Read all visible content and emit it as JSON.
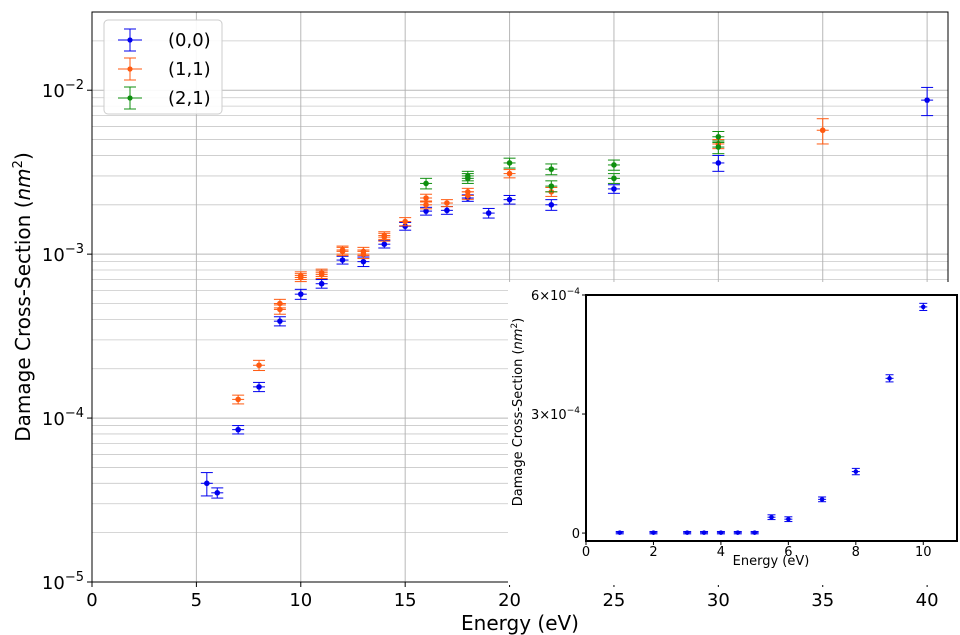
{
  "chart_data": [
    {
      "type": "scatter",
      "title": "",
      "xlabel": "Energy (eV)",
      "ylabel": "Damage Cross-Section (nm²)",
      "yscale": "log",
      "xlim": [
        0,
        41
      ],
      "ylim": [
        1e-05,
        0.03
      ],
      "x_ticks": [
        0,
        5,
        10,
        15,
        20,
        25,
        30,
        35,
        40
      ],
      "y_ticks": [
        {
          "value": 1e-05,
          "base": "10",
          "exp": "−5"
        },
        {
          "value": 0.0001,
          "base": "10",
          "exp": "−4"
        },
        {
          "value": 0.001,
          "base": "10",
          "exp": "−3"
        },
        {
          "value": 0.01,
          "base": "10",
          "exp": "−2"
        }
      ],
      "grid": true,
      "legend_position": "top-left",
      "series": [
        {
          "name": "(0,0)",
          "color": "#0000ee",
          "points": [
            {
              "x": 5.5,
              "y": 4e-05,
              "err": 6.5e-06
            },
            {
              "x": 6.0,
              "y": 3.5e-05,
              "err": 2.5e-06
            },
            {
              "x": 7.0,
              "y": 8.5e-05,
              "err": 5e-06
            },
            {
              "x": 8.0,
              "y": 0.000155,
              "err": 1e-05
            },
            {
              "x": 9.0,
              "y": 0.00039,
              "err": 2.5e-05
            },
            {
              "x": 10.0,
              "y": 0.00057,
              "err": 4e-05
            },
            {
              "x": 11.0,
              "y": 0.00066,
              "err": 4e-05
            },
            {
              "x": 12.0,
              "y": 0.00092,
              "err": 5e-05
            },
            {
              "x": 13.0,
              "y": 0.0009,
              "err": 6e-05
            },
            {
              "x": 14.0,
              "y": 0.00115,
              "err": 6e-05
            },
            {
              "x": 15.0,
              "y": 0.00148,
              "err": 8e-05
            },
            {
              "x": 16.0,
              "y": 0.00183,
              "err": 0.0001
            },
            {
              "x": 17.0,
              "y": 0.00185,
              "err": 0.0001
            },
            {
              "x": 18.0,
              "y": 0.0022,
              "err": 0.0001
            },
            {
              "x": 19.0,
              "y": 0.00178,
              "err": 0.00012
            },
            {
              "x": 20.0,
              "y": 0.00215,
              "err": 0.00013
            },
            {
              "x": 22.0,
              "y": 0.002,
              "err": 0.00015
            },
            {
              "x": 25.0,
              "y": 0.0025,
              "err": 0.00015
            },
            {
              "x": 30.0,
              "y": 0.0036,
              "err": 0.0004
            },
            {
              "x": 40.0,
              "y": 0.0087,
              "err": 0.0017
            }
          ]
        },
        {
          "name": "(1,1)",
          "color": "#ff5a10",
          "points": [
            {
              "x": 7.0,
              "y": 0.00013,
              "err": 8e-06
            },
            {
              "x": 8.0,
              "y": 0.00021,
              "err": 1.5e-05
            },
            {
              "x": 9.0,
              "y": 0.00046,
              "err": 3e-05
            },
            {
              "x": 9.0,
              "y": 0.0005,
              "err": 3e-05
            },
            {
              "x": 10.0,
              "y": 0.00072,
              "err": 4e-05
            },
            {
              "x": 10.0,
              "y": 0.00074,
              "err": 4e-05
            },
            {
              "x": 11.0,
              "y": 0.00075,
              "err": 4e-05
            },
            {
              "x": 11.0,
              "y": 0.00077,
              "err": 4e-05
            },
            {
              "x": 12.0,
              "y": 0.00104,
              "err": 6e-05
            },
            {
              "x": 12.0,
              "y": 0.00106,
              "err": 6e-05
            },
            {
              "x": 13.0,
              "y": 0.001,
              "err": 6e-05
            },
            {
              "x": 13.0,
              "y": 0.00104,
              "err": 6e-05
            },
            {
              "x": 14.0,
              "y": 0.0013,
              "err": 7e-05
            },
            {
              "x": 14.0,
              "y": 0.00127,
              "err": 7e-05
            },
            {
              "x": 15.0,
              "y": 0.00158,
              "err": 9e-05
            },
            {
              "x": 16.0,
              "y": 0.0022,
              "err": 0.00012
            },
            {
              "x": 16.0,
              "y": 0.002,
              "err": 0.00011
            },
            {
              "x": 17.0,
              "y": 0.00205,
              "err": 0.0001
            },
            {
              "x": 18.0,
              "y": 0.0024,
              "err": 0.00012
            },
            {
              "x": 18.0,
              "y": 0.00228,
              "err": 0.00012
            },
            {
              "x": 20.0,
              "y": 0.0031,
              "err": 0.00018
            },
            {
              "x": 22.0,
              "y": 0.0024,
              "err": 0.00015
            },
            {
              "x": 30.0,
              "y": 0.0047,
              "err": 0.0003
            },
            {
              "x": 35.0,
              "y": 0.0057,
              "err": 0.001
            }
          ]
        },
        {
          "name": "(2,1)",
          "color": "#0f8f0f",
          "points": [
            {
              "x": 16.0,
              "y": 0.0027,
              "err": 0.0002
            },
            {
              "x": 18.0,
              "y": 0.003,
              "err": 0.0002
            },
            {
              "x": 18.0,
              "y": 0.0029,
              "err": 0.0002
            },
            {
              "x": 20.0,
              "y": 0.0036,
              "err": 0.00025
            },
            {
              "x": 22.0,
              "y": 0.0033,
              "err": 0.00025
            },
            {
              "x": 22.0,
              "y": 0.0026,
              "err": 0.0002
            },
            {
              "x": 25.0,
              "y": 0.0035,
              "err": 0.00025
            },
            {
              "x": 25.0,
              "y": 0.0029,
              "err": 0.0002
            },
            {
              "x": 30.0,
              "y": 0.0052,
              "err": 0.0004
            },
            {
              "x": 30.0,
              "y": 0.0045,
              "err": 0.0004
            }
          ]
        }
      ]
    },
    {
      "type": "scatter",
      "title": "",
      "xlabel": "Energy (eV)",
      "ylabel": "Damage Cross-Section (nm²)",
      "yscale": "linear",
      "xlim": [
        0,
        11
      ],
      "ylim": [
        -2e-05,
        0.0006
      ],
      "x_ticks": [
        0,
        2,
        4,
        6,
        8,
        10
      ],
      "y_ticks": [
        {
          "value": 0,
          "label": "0"
        },
        {
          "value": 0.0003,
          "base": "3×10",
          "exp": "−4"
        },
        {
          "value": 0.0006,
          "base": "6×10",
          "exp": "−4"
        }
      ],
      "grid": false,
      "series": [
        {
          "name": "",
          "color": "#0000ee",
          "points": [
            {
              "x": 1.0,
              "y": 1e-06,
              "err": 3e-06
            },
            {
              "x": 2.0,
              "y": 1e-06,
              "err": 3e-06
            },
            {
              "x": 3.0,
              "y": 1e-06,
              "err": 3e-06
            },
            {
              "x": 3.5,
              "y": 1e-06,
              "err": 3e-06
            },
            {
              "x": 4.0,
              "y": 1e-06,
              "err": 3e-06
            },
            {
              "x": 4.5,
              "y": 1e-06,
              "err": 3e-06
            },
            {
              "x": 5.0,
              "y": 1e-06,
              "err": 3e-06
            },
            {
              "x": 5.5,
              "y": 4e-05,
              "err": 6e-06
            },
            {
              "x": 6.0,
              "y": 3.5e-05,
              "err": 6e-06
            },
            {
              "x": 7.0,
              "y": 8.5e-05,
              "err": 6e-06
            },
            {
              "x": 8.0,
              "y": 0.000155,
              "err": 8e-06
            },
            {
              "x": 9.0,
              "y": 0.00039,
              "err": 9e-06
            },
            {
              "x": 10.0,
              "y": 0.00057,
              "err": 9e-06
            }
          ]
        }
      ]
    }
  ]
}
